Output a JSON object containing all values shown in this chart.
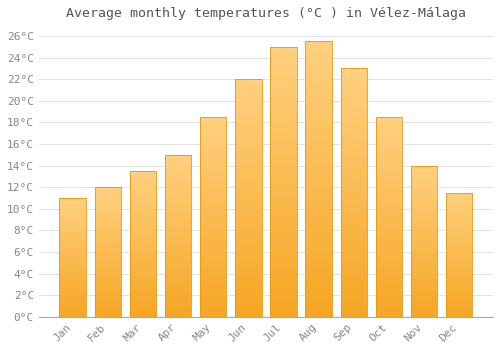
{
  "title": "Average monthly temperatures (°C ) in Vélez-Málaga",
  "months": [
    "Jan",
    "Feb",
    "Mar",
    "Apr",
    "May",
    "Jun",
    "Jul",
    "Aug",
    "Sep",
    "Oct",
    "Nov",
    "Dec"
  ],
  "values": [
    11.0,
    12.0,
    13.5,
    15.0,
    18.5,
    22.0,
    25.0,
    25.5,
    23.0,
    18.5,
    14.0,
    11.5
  ],
  "bar_color_bottom": "#F5A623",
  "bar_color_top": "#FFD080",
  "bar_edge_color": "#E8960A",
  "ylim": [
    0,
    27
  ],
  "yticks": [
    0,
    2,
    4,
    6,
    8,
    10,
    12,
    14,
    16,
    18,
    20,
    22,
    24,
    26
  ],
  "background_color": "#FFFFFF",
  "grid_color": "#DDDDDD",
  "title_fontsize": 9.5,
  "tick_fontsize": 8,
  "font_color": "#888888",
  "title_color": "#555555"
}
